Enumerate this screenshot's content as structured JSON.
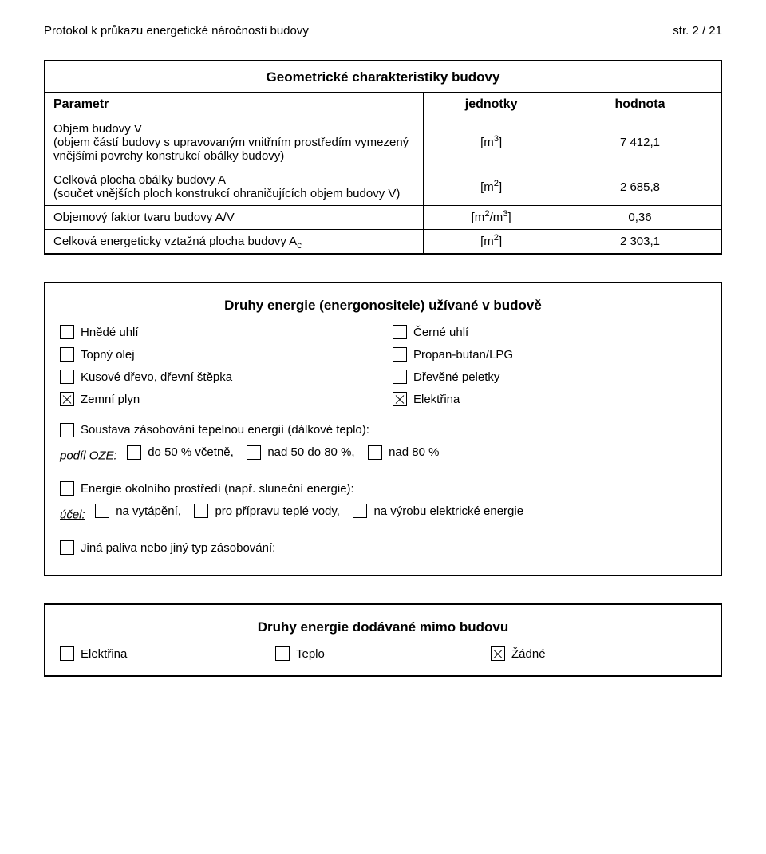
{
  "header": {
    "left": "Protokol k průkazu energetické náročnosti budovy",
    "right": "str. 2 / 21"
  },
  "geom_table": {
    "title": "Geometrické charakteristiky budovy",
    "head": {
      "param": "Parametr",
      "unit": "jednotky",
      "value": "hodnota"
    },
    "rows": [
      {
        "label_html": "Objem budovy V<br>(objem částí budovy s upravovaným vnitřním prostředím vymezený vnějšími povrchy konstrukcí obálky budovy)",
        "unit_html": "[m<sup>3</sup>]",
        "value": "7 412,1"
      },
      {
        "label_html": "Celková plocha obálky budovy A<br>(součet vnějších ploch konstrukcí ohraničujících objem budovy V)",
        "unit_html": "[m<sup>2</sup>]",
        "value": "2 685,8"
      },
      {
        "label_html": "Objemový faktor tvaru budovy A/V",
        "unit_html": "[m<sup>2</sup>/m<sup>3</sup>]",
        "value": "0,36"
      },
      {
        "label_html": "Celková energeticky vztažná plocha budovy A<sub>c</sub>",
        "unit_html": "[m<sup>2</sup>]",
        "value": "2 303,1"
      }
    ]
  },
  "fuels": {
    "title": "Druhy energie (energonositele) užívané v budově",
    "pairs": [
      {
        "left": {
          "label": "Hnědé uhlí",
          "checked": false
        },
        "right": {
          "label": "Černé uhlí",
          "checked": false
        }
      },
      {
        "left": {
          "label": "Topný olej",
          "checked": false
        },
        "right": {
          "label": "Propan-butan/LPG",
          "checked": false
        }
      },
      {
        "left": {
          "label": "Kusové dřevo, dřevní štěpka",
          "checked": false
        },
        "right": {
          "label": "Dřevěné peletky",
          "checked": false
        }
      },
      {
        "left": {
          "label": "Zemní plyn",
          "checked": true
        },
        "right": {
          "label": "Elektřina",
          "checked": true
        }
      }
    ],
    "district": {
      "lead_checked": false,
      "lead_text": "Soustava zásobování tepelnou energií (dálkové teplo):",
      "share_label": "podíl OZE:",
      "opts": [
        {
          "label": "do 50 % včetně,",
          "checked": false
        },
        {
          "label": "nad 50 do 80 %,",
          "checked": false
        },
        {
          "label": "nad 80 %",
          "checked": false
        }
      ]
    },
    "ambient": {
      "lead_checked": false,
      "lead_text": "Energie okolního prostředí  (např. sluneční energie):",
      "purpose_label": "účel:",
      "opts": [
        {
          "label": "na vytápění,",
          "checked": false
        },
        {
          "label": "pro přípravu teplé vody,",
          "checked": false
        },
        {
          "label": "na výrobu elektrické energie",
          "checked": false
        }
      ]
    },
    "other": {
      "checked": false,
      "text": "Jiná paliva nebo jiný typ zásobování:"
    }
  },
  "exported": {
    "title": "Druhy energie dodávané mimo budovu",
    "items": [
      {
        "label": "Elektřina",
        "checked": false
      },
      {
        "label": "Teplo",
        "checked": false
      },
      {
        "label": "Žádné",
        "checked": true
      }
    ]
  }
}
